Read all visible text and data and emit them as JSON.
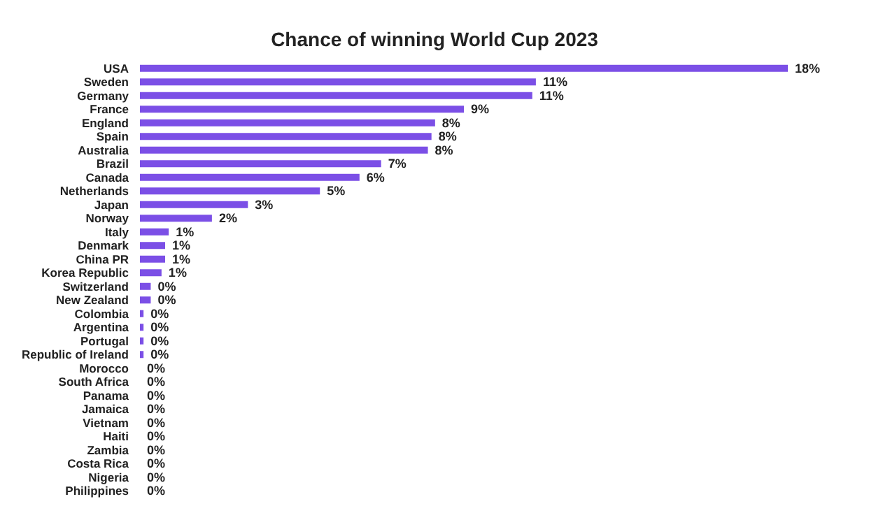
{
  "chart_data": {
    "type": "bar",
    "orientation": "horizontal",
    "title": "Chance of winning World Cup 2023",
    "color": "#7b4fe6",
    "categories": [
      "USA",
      "Sweden",
      "Germany",
      "France",
      "England",
      "Spain",
      "Australia",
      "Brazil",
      "Canada",
      "Netherlands",
      "Japan",
      "Norway",
      "Italy",
      "Denmark",
      "China PR",
      "Korea Republic",
      "Switzerland",
      "New Zealand",
      "Colombia",
      "Argentina",
      "Portugal",
      "Republic of Ireland",
      "Morocco",
      "South Africa",
      "Panama",
      "Jamaica",
      "Vietnam",
      "Haiti",
      "Zambia",
      "Costa Rica",
      "Nigeria",
      "Philippines"
    ],
    "values": [
      18,
      11,
      10.9,
      9,
      8.2,
      8.1,
      8,
      6.7,
      6.1,
      5,
      3,
      2,
      0.8,
      0.7,
      0.7,
      0.6,
      0.3,
      0.3,
      0.1,
      0.1,
      0.1,
      0.1,
      0,
      0,
      0,
      0,
      0,
      0,
      0,
      0,
      0,
      0
    ],
    "value_labels": [
      "18%",
      "11%",
      "11%",
      "9%",
      "8%",
      "8%",
      "8%",
      "7%",
      "6%",
      "5%",
      "3%",
      "2%",
      "1%",
      "1%",
      "1%",
      "1%",
      "0%",
      "0%",
      "0%",
      "0%",
      "0%",
      "0%",
      "0%",
      "0%",
      "0%",
      "0%",
      "0%",
      "0%",
      "0%",
      "0%",
      "0%",
      "0%"
    ]
  }
}
